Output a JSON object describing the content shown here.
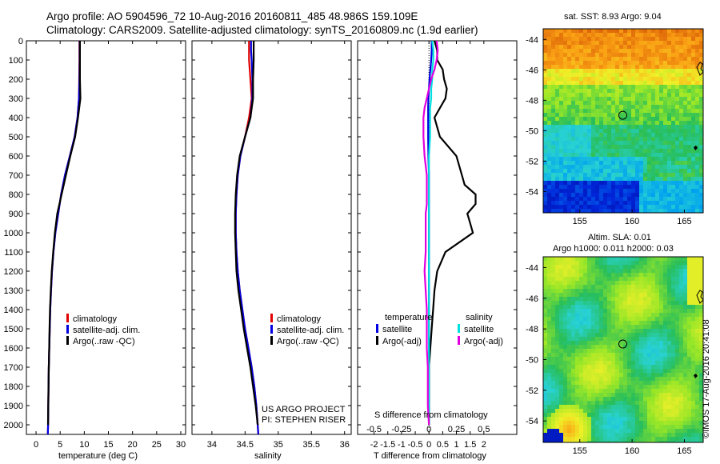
{
  "header": {
    "line1": "Argo profile: AO 5904596_72 10-Aug-2016 20160811_485 48.986S 159.109E",
    "line2": "Climatology: CARS2009. Satellite-adjusted climatology: synTS_20160809.nc (1.9d earlier)"
  },
  "credit": "©IMOS 17-Aug-2016 20:41:08",
  "project": {
    "line1": "US ARGO PROJECT",
    "line2": "PI: STEPHEN RISER"
  },
  "map_sst": {
    "title": "sat. SST: 8.93 Argo: 9.04",
    "xticks": [
      "155",
      "160",
      "165"
    ],
    "yticks": [
      "-44",
      "-46",
      "-48",
      "-50",
      "-52",
      "-54"
    ],
    "xlim": [
      151.5,
      166.8
    ],
    "ylim": [
      -55.4,
      -43.3
    ],
    "float_position": {
      "lon": 159.109,
      "lat": -48.986
    }
  },
  "map_sla": {
    "title_line1": "Altim. SLA: 0.01",
    "title_line2": "Argo h1000: 0.011 h2000: 0.03",
    "xticks": [
      "155",
      "160",
      "165"
    ],
    "yticks": [
      "-44",
      "-46",
      "-48",
      "-50",
      "-52",
      "-54"
    ],
    "xlim": [
      151.5,
      166.8
    ],
    "ylim": [
      -55.4,
      -43.3
    ],
    "float_position": {
      "lon": 159.109,
      "lat": -48.986
    }
  },
  "colors": {
    "climatology": "#e00000",
    "satellite": "#0000e0",
    "argo": "#000000",
    "sat_salinity": "#00e0e0",
    "argo_salinity": "#e000e0"
  },
  "chart_data": [
    {
      "type": "line",
      "xlabel": "temperature (deg C)",
      "xlim": [
        -2,
        31
      ],
      "xticks": [
        "0",
        "5",
        "10",
        "15",
        "20",
        "25",
        "30"
      ],
      "ylim": [
        2050,
        0
      ],
      "yticks": [
        "0",
        "100",
        "200",
        "300",
        "400",
        "500",
        "600",
        "700",
        "800",
        "900",
        "1000",
        "1100",
        "1200",
        "1300",
        "1400",
        "1500",
        "1600",
        "1700",
        "1800",
        "1900",
        "2000"
      ],
      "legend": [
        "climatology",
        "satellite-adj. clim.",
        "Argo(..raw -QC)"
      ],
      "x": [
        0,
        50,
        100,
        200,
        300,
        400,
        500,
        600,
        700,
        800,
        900,
        1000,
        1100,
        1200,
        1300,
        1400,
        1500,
        1600,
        1700,
        1800,
        1900,
        2000,
        2050
      ],
      "series": [
        {
          "name": "climatology",
          "values": [
            9.0,
            9.0,
            9.0,
            8.95,
            8.9,
            8.6,
            8.0,
            7.0,
            6.0,
            5.2,
            4.6,
            4.0,
            3.6,
            3.3,
            3.1,
            2.95,
            2.85,
            2.75,
            2.65,
            2.6,
            2.55,
            2.5,
            2.45
          ]
        },
        {
          "name": "satellite-adj. clim.",
          "values": [
            9.05,
            9.05,
            9.05,
            9.0,
            8.9,
            8.6,
            8.0,
            7.0,
            6.0,
            5.2,
            4.6,
            4.0,
            3.6,
            3.3,
            3.1,
            2.95,
            2.85,
            2.75,
            2.65,
            2.6,
            2.55,
            2.5,
            2.45
          ]
        },
        {
          "name": "Argo(..raw -QC)",
          "values": [
            9.1,
            9.1,
            9.1,
            9.1,
            9.2,
            8.7,
            8.1,
            7.1,
            6.2,
            5.3,
            4.4,
            3.9,
            3.55,
            3.25,
            3.05,
            2.9,
            2.8,
            2.72,
            2.64,
            2.58,
            2.53,
            2.48,
            null
          ]
        }
      ]
    },
    {
      "type": "line",
      "xlabel": "salinity",
      "xlim": [
        33.7,
        36.1
      ],
      "xticks": [
        "34",
        "34.5",
        "35",
        "35.5",
        "36"
      ],
      "ylim": [
        2050,
        0
      ],
      "legend": [
        "climatology",
        "satellite-adj. clim.",
        "Argo(..raw -QC)"
      ],
      "x": [
        0,
        50,
        100,
        200,
        300,
        400,
        500,
        600,
        700,
        800,
        900,
        1000,
        1100,
        1200,
        1300,
        1400,
        1500,
        1600,
        1700,
        1800,
        1900,
        2000,
        2050
      ],
      "series": [
        {
          "name": "climatology",
          "values": [
            34.56,
            34.56,
            34.56,
            34.58,
            34.6,
            34.56,
            34.5,
            34.43,
            34.39,
            34.37,
            34.36,
            34.36,
            34.37,
            34.39,
            34.42,
            34.46,
            34.5,
            34.55,
            34.6,
            34.64,
            34.67,
            34.69,
            34.7
          ]
        },
        {
          "name": "satellite-adj. clim.",
          "values": [
            34.59,
            34.59,
            34.6,
            34.61,
            34.61,
            34.58,
            34.5,
            34.43,
            34.39,
            34.37,
            34.36,
            34.36,
            34.37,
            34.39,
            34.42,
            34.46,
            34.5,
            34.55,
            34.6,
            34.64,
            34.67,
            34.69,
            34.7
          ]
        },
        {
          "name": "Argo(..raw -QC)",
          "values": [
            34.63,
            34.63,
            34.63,
            34.62,
            34.62,
            34.58,
            34.5,
            34.42,
            34.38,
            34.36,
            34.35,
            34.35,
            34.36,
            34.37,
            34.4,
            34.44,
            34.48,
            34.53,
            34.58,
            34.62,
            34.66,
            34.69,
            null
          ]
        }
      ]
    },
    {
      "type": "line",
      "xlabel": "T difference from climatology",
      "xlabel_top": "S difference from climatology",
      "xlim": [
        -2.6,
        3.2
      ],
      "xticks": [
        "-2",
        "-1.5",
        "-1",
        "-0.5",
        "0",
        "0.5",
        "1",
        "1.5",
        "2"
      ],
      "xticks_top": [
        "-0.5",
        "-0.25",
        "0",
        "0.25",
        "0.5"
      ],
      "ylim": [
        2050,
        0
      ],
      "legend_temperature": {
        "title": "temperature",
        "items": [
          "satellite",
          "Argo(-adj)"
        ]
      },
      "legend_salinity": {
        "title": "salinity",
        "items": [
          "satellite",
          "Argo(-adj)"
        ]
      },
      "x": [
        0,
        50,
        100,
        150,
        200,
        250,
        300,
        350,
        400,
        500,
        600,
        700,
        750,
        800,
        850,
        900,
        950,
        1000,
        1100,
        1200,
        1300,
        1400,
        1500,
        1600,
        1700,
        1800,
        1900,
        2000
      ],
      "series": [
        {
          "name": "temperature satellite",
          "values": [
            0.1,
            0.1,
            0.08,
            0.05,
            0.02,
            0.0,
            -0.02,
            -0.03,
            -0.03,
            -0.03,
            -0.02,
            0.0,
            0.0,
            0.0,
            0.0,
            0.0,
            0.0,
            0.0,
            0.0,
            0.0,
            0.0,
            0.0,
            0.0,
            0.0,
            0.0,
            0.0,
            0.0,
            0.0
          ]
        },
        {
          "name": "temperature Argo(-adj)",
          "values": [
            0.2,
            0.3,
            0.3,
            0.5,
            0.55,
            0.65,
            0.6,
            0.4,
            0.2,
            0.4,
            1.0,
            1.2,
            1.3,
            1.7,
            1.7,
            1.4,
            1.5,
            1.6,
            0.6,
            0.3,
            0.2,
            0.15,
            0.1,
            0.05,
            0.0,
            0.0,
            0.0,
            0.0
          ]
        },
        {
          "name": "salinity satellite",
          "values": [
            0.03,
            0.04,
            0.04,
            0.03,
            0.03,
            0.02,
            0.02,
            0.01,
            0.01,
            0.01,
            0.0,
            0.0,
            0.0,
            0.0,
            0.0,
            0.0,
            0.0,
            0.0,
            0.0,
            0.0,
            0.0,
            0.0,
            0.0,
            0.0,
            0.0,
            0.0,
            0.0,
            0.0
          ]
        },
        {
          "name": "salinity Argo(-adj)",
          "values": [
            0.07,
            0.08,
            0.07,
            0.05,
            0.02,
            0.0,
            -0.02,
            -0.04,
            -0.05,
            -0.05,
            -0.04,
            -0.02,
            -0.02,
            -0.02,
            -0.02,
            -0.03,
            -0.03,
            -0.03,
            -0.03,
            -0.04,
            -0.03,
            -0.02,
            -0.02,
            -0.02,
            -0.01,
            -0.01,
            -0.01,
            0.0
          ]
        }
      ]
    }
  ]
}
